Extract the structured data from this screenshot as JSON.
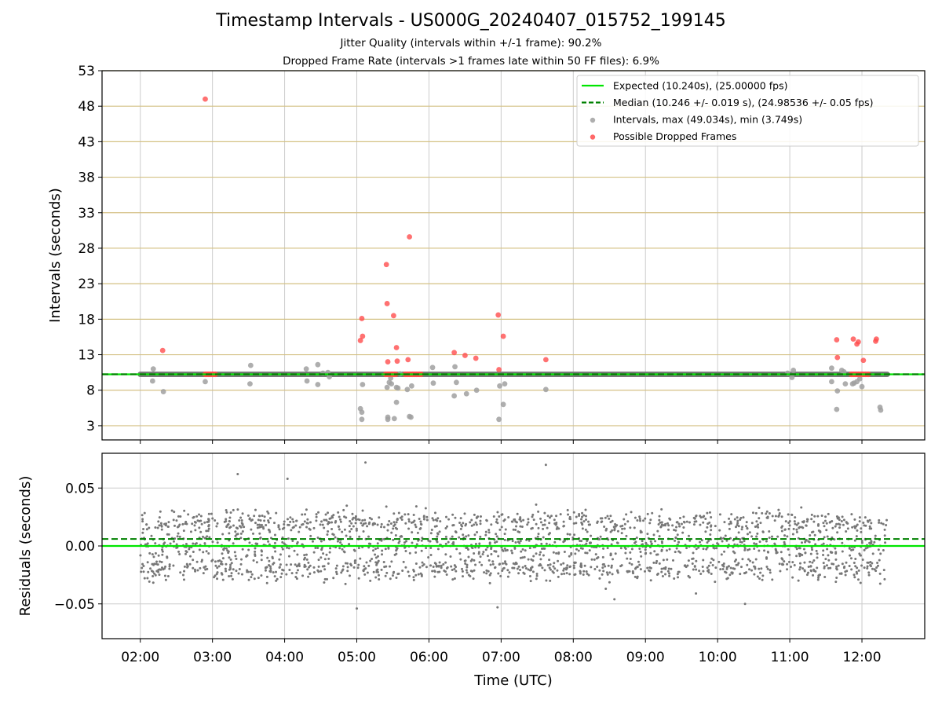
{
  "title": "Timestamp Intervals - US000G_20240407_015752_199145",
  "subtitle1": "Jitter Quality (intervals within +/-1 frame): 90.2%",
  "subtitle2": "Dropped Frame Rate (intervals >1 frames late within 50 FF files): 6.9%",
  "colors": {
    "expected": "#00e600",
    "median": "#008000",
    "intervals": "#a0a0a0",
    "dropped": "#ff4d4d",
    "residuals": "#777777",
    "hgrid_top": "#d4c184",
    "grid": "#cccccc"
  },
  "chart_data": [
    {
      "type": "scatter",
      "panel": "top",
      "ylabel": "Intervals (seconds)",
      "xlabel": "",
      "ylim": [
        1,
        53
      ],
      "yticks": [
        3,
        8,
        13,
        18,
        23,
        28,
        33,
        38,
        43,
        48,
        53
      ],
      "xlim": [
        1.47,
        12.87
      ],
      "xticks": [
        2,
        3,
        4,
        5,
        6,
        7,
        8,
        9,
        10,
        11,
        12
      ],
      "xtick_labels": [
        "02:00",
        "03:00",
        "04:00",
        "05:00",
        "06:00",
        "07:00",
        "08:00",
        "09:00",
        "10:00",
        "11:00",
        "12:00"
      ],
      "grid": true,
      "legend_position": "top-right",
      "legend": [
        "Expected (10.240s), (25.00000 fps)",
        "Median (10.246 +/- 0.019 s), (24.98536 +/- 0.05 fps)",
        "Intervals, max (49.034s), min (3.749s)",
        "Possible Dropped Frames"
      ],
      "expected_value": 10.24,
      "median_value": 10.246,
      "baseline_range_hours": [
        2.0,
        12.35
      ],
      "series": [
        {
          "name": "Intervals, max (49.034s), min (3.749s)",
          "x": [
            2.18,
            2.17,
            2.32,
            2.9,
            3.53,
            3.52,
            4.3,
            4.31,
            4.46,
            4.46,
            4.53,
            4.6,
            4.62,
            5.05,
            5.07,
            5.07,
            5.08,
            5.42,
            5.43,
            5.43,
            5.45,
            5.47,
            5.48,
            5.52,
            5.55,
            5.55,
            5.57,
            5.6,
            5.7,
            5.73,
            5.75,
            5.76,
            6.05,
            6.06,
            6.36,
            6.38,
            6.35,
            6.52,
            6.66,
            6.97,
            6.98,
            7.03,
            7.05,
            7.62,
            10.97,
            11.03,
            11.05,
            11.58,
            11.58,
            11.65,
            11.66,
            11.72,
            11.75,
            11.77,
            11.87,
            11.89,
            11.93,
            11.97,
            12.0,
            12.25,
            12.26
          ],
          "y": [
            11.0,
            9.3,
            7.8,
            9.2,
            11.5,
            8.9,
            11.0,
            9.3,
            11.6,
            8.8,
            10.4,
            10.5,
            9.9,
            5.4,
            4.9,
            3.9,
            8.8,
            8.4,
            4.2,
            3.9,
            9.1,
            9.7,
            8.9,
            4.0,
            8.4,
            6.3,
            8.3,
            10.3,
            8.1,
            4.3,
            4.2,
            8.6,
            11.2,
            9.0,
            11.3,
            9.1,
            7.2,
            7.5,
            8.0,
            3.9,
            8.6,
            6.0,
            8.9,
            8.1,
            10.4,
            9.8,
            10.8,
            11.1,
            9.2,
            5.3,
            7.9,
            10.8,
            10.6,
            8.9,
            8.9,
            9.0,
            9.2,
            9.6,
            8.5,
            5.6,
            5.2
          ]
        },
        {
          "name": "Possible Dropped Frames",
          "x": [
            2.31,
            2.9,
            5.05,
            5.07,
            5.08,
            5.41,
            5.42,
            5.43,
            5.51,
            5.55,
            5.56,
            5.71,
            5.73,
            6.35,
            6.5,
            6.65,
            6.96,
            6.97,
            7.03,
            7.62,
            11.65,
            11.66,
            11.88,
            11.93,
            11.95,
            12.02,
            12.19,
            12.2
          ],
          "y": [
            13.6,
            49.0,
            15.0,
            18.1,
            15.6,
            25.7,
            20.2,
            12.0,
            18.5,
            14.0,
            12.1,
            12.3,
            29.6,
            13.3,
            12.9,
            12.5,
            18.6,
            10.9,
            15.6,
            12.3,
            15.1,
            12.6,
            15.2,
            14.5,
            14.8,
            12.2,
            14.9,
            15.2
          ]
        },
        {
          "name": "Possible Dropped Frames (clusters at baseline)",
          "x_ranges": [
            [
              2.9,
              3.05
            ],
            [
              5.4,
              5.55
            ],
            [
              5.67,
              5.9
            ],
            [
              11.85,
              12.1
            ]
          ],
          "y": 10.24
        }
      ]
    },
    {
      "type": "scatter",
      "panel": "bottom",
      "ylabel": "Residuals (seconds)",
      "xlabel": "Time (UTC)",
      "ylim": [
        -0.08,
        0.08
      ],
      "yticks": [
        -0.05,
        0.0,
        0.05
      ],
      "ytick_labels": [
        "−0.05",
        "0.00",
        "0.05"
      ],
      "xlim": [
        1.47,
        12.87
      ],
      "xticks": [
        2,
        3,
        4,
        5,
        6,
        7,
        8,
        9,
        10,
        11,
        12
      ],
      "xtick_labels": [
        "02:00",
        "03:00",
        "04:00",
        "05:00",
        "06:00",
        "07:00",
        "08:00",
        "09:00",
        "10:00",
        "11:00",
        "12:00"
      ],
      "grid": true,
      "expected_residual": 0.0,
      "median_residual": 0.006,
      "series": [
        {
          "name": "Residuals",
          "x_range": [
            2.0,
            12.35
          ],
          "y_bands": [
            -0.02,
            0.0,
            0.02
          ],
          "y_spread": 0.012,
          "outliers_x": [
            5.0,
            6.95,
            5.12,
            7.62,
            10.38,
            8.57,
            3.35,
            4.04,
            9.7
          ],
          "outliers_y": [
            -0.054,
            -0.053,
            0.072,
            0.07,
            -0.05,
            -0.046,
            0.062,
            0.058,
            -0.041
          ]
        }
      ]
    }
  ]
}
